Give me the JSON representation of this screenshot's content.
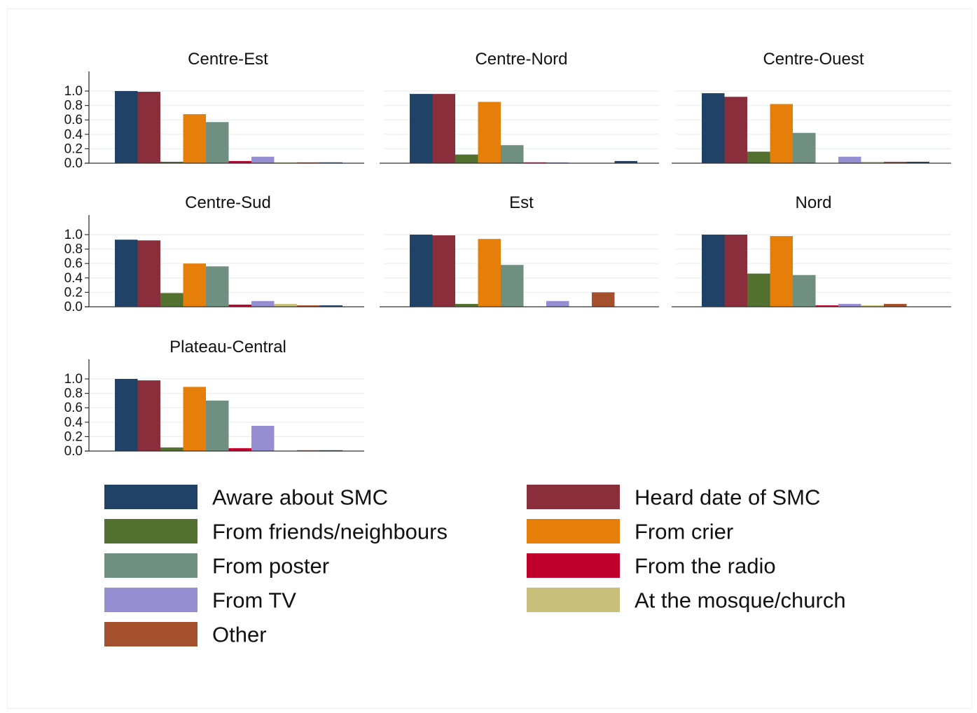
{
  "chart_data": {
    "type": "bar",
    "layout": "small-multiples",
    "ylim": [
      0,
      1.0
    ],
    "yticks": [
      "0.0",
      "0.2",
      "0.4",
      "0.6",
      "0.8",
      "1.0"
    ],
    "grid": true,
    "legend_position": "bottom",
    "series": [
      {
        "name": "Aware about SMC",
        "color": "#1f4266"
      },
      {
        "name": "Heard date of SMC",
        "color": "#8b2e3b"
      },
      {
        "name": "From friends/neighbours",
        "color": "#52702e"
      },
      {
        "name": "From crier",
        "color": "#e57f0a"
      },
      {
        "name": "From poster",
        "color": "#6f8f80"
      },
      {
        "name": "From the radio",
        "color": "#c0002d"
      },
      {
        "name": "From TV",
        "color": "#958fd2"
      },
      {
        "name": "At the mosque/church",
        "color": "#c7bf7a"
      },
      {
        "name": "Other",
        "color": "#a4502d"
      }
    ],
    "legend_order": [
      0,
      1,
      2,
      3,
      4,
      5,
      6,
      7,
      8
    ],
    "panels": [
      {
        "title": "Centre-Est",
        "values": [
          1.0,
          0.99,
          0.02,
          0.68,
          0.57,
          0.03,
          0.09,
          0.01,
          0.01,
          0.005
        ]
      },
      {
        "title": "Centre-Nord",
        "values": [
          0.96,
          0.96,
          0.12,
          0.85,
          0.25,
          0.01,
          0.005,
          0.0,
          0.0,
          0.03
        ]
      },
      {
        "title": "Centre-Ouest",
        "values": [
          0.97,
          0.92,
          0.16,
          0.82,
          0.42,
          0.0,
          0.09,
          0.02,
          0.02,
          0.02
        ]
      },
      {
        "title": "Centre-Sud",
        "values": [
          0.93,
          0.92,
          0.19,
          0.6,
          0.56,
          0.03,
          0.08,
          0.04,
          0.02,
          0.02
        ]
      },
      {
        "title": "Est",
        "values": [
          1.0,
          0.99,
          0.04,
          0.94,
          0.58,
          0.0,
          0.08,
          0.0,
          0.2,
          0.0
        ]
      },
      {
        "title": "Nord",
        "values": [
          1.0,
          1.0,
          0.46,
          0.98,
          0.44,
          0.02,
          0.04,
          0.02,
          0.04,
          0.0
        ]
      },
      {
        "title": "Plateau-Central",
        "values": [
          1.0,
          0.98,
          0.05,
          0.89,
          0.7,
          0.04,
          0.35,
          0.0,
          0.01,
          0.005
        ]
      }
    ],
    "bar_series_index": [
      0,
      1,
      2,
      3,
      4,
      5,
      6,
      7,
      8,
      0
    ]
  }
}
